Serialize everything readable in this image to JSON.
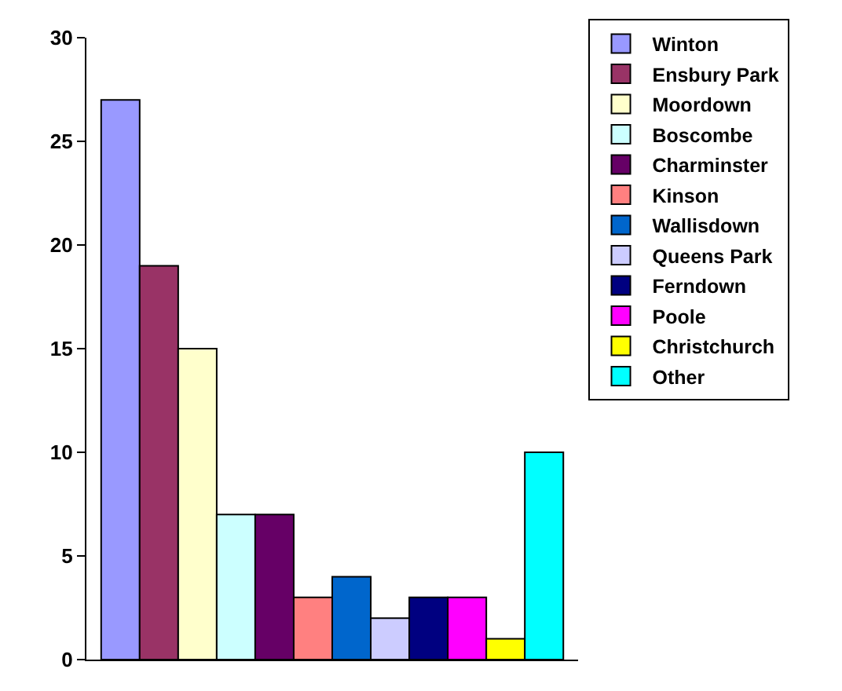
{
  "chart_data": {
    "type": "bar",
    "categories": [
      null
    ],
    "series": [
      {
        "name": "Winton",
        "color": "#9999ff",
        "values": [
          27
        ]
      },
      {
        "name": "Ensbury Park",
        "color": "#993366",
        "values": [
          19
        ]
      },
      {
        "name": "Moordown",
        "color": "#ffffcc",
        "values": [
          15
        ]
      },
      {
        "name": "Boscombe",
        "color": "#ccffff",
        "values": [
          7
        ]
      },
      {
        "name": "Charminster",
        "color": "#660066",
        "values": [
          7
        ]
      },
      {
        "name": "Kinson",
        "color": "#ff8080",
        "values": [
          3
        ]
      },
      {
        "name": "Wallisdown",
        "color": "#0066cc",
        "values": [
          4
        ]
      },
      {
        "name": "Queens Park",
        "color": "#ccccff",
        "values": [
          2
        ]
      },
      {
        "name": "Ferndown",
        "color": "#000080",
        "values": [
          3
        ]
      },
      {
        "name": "Poole",
        "color": "#ff00ff",
        "values": [
          3
        ]
      },
      {
        "name": "Christchurch",
        "color": "#ffff00",
        "values": [
          1
        ]
      },
      {
        "name": "Other",
        "color": "#00ffff",
        "values": [
          10
        ]
      }
    ],
    "ylim": [
      0,
      30
    ],
    "yticks": [
      0,
      5,
      10,
      15,
      20,
      25,
      30
    ],
    "grid": false,
    "legend": "right"
  }
}
